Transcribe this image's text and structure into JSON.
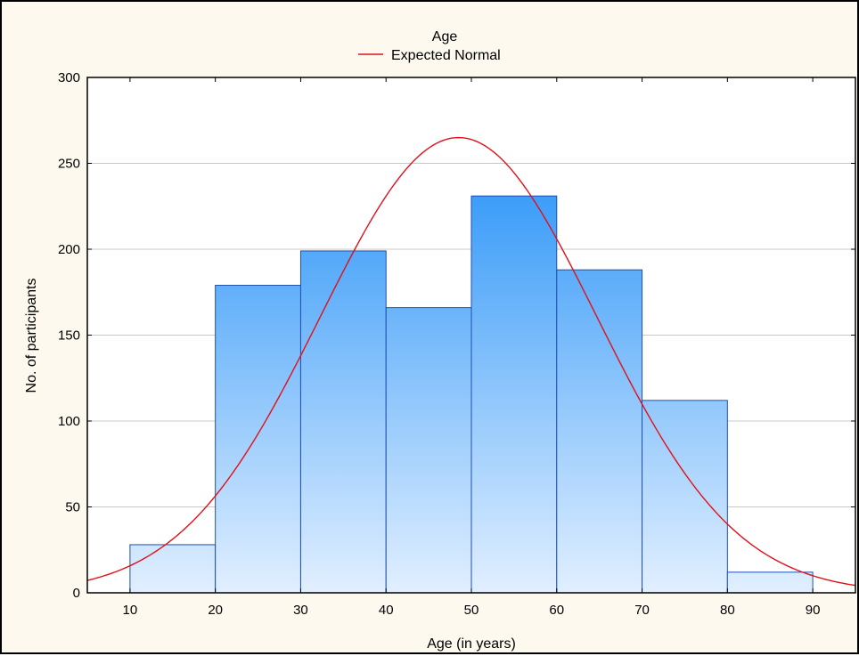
{
  "chart_data": {
    "type": "bar",
    "title": "Age",
    "xlabel": "Age (in years)",
    "ylabel": "No. of  participants",
    "xlim": [
      5,
      95
    ],
    "ylim": [
      0,
      300
    ],
    "x_ticks": [
      10,
      20,
      30,
      40,
      50,
      60,
      70,
      80,
      90
    ],
    "y_ticks": [
      0,
      50,
      100,
      150,
      200,
      250,
      300
    ],
    "grid": "horizontal",
    "legend_position": "top-center",
    "bins": [
      {
        "from": 10,
        "to": 20,
        "count": 28
      },
      {
        "from": 20,
        "to": 30,
        "count": 179
      },
      {
        "from": 30,
        "to": 40,
        "count": 199
      },
      {
        "from": 40,
        "to": 50,
        "count": 166
      },
      {
        "from": 50,
        "to": 60,
        "count": 231
      },
      {
        "from": 60,
        "to": 70,
        "count": 188
      },
      {
        "from": 70,
        "to": 80,
        "count": 112
      },
      {
        "from": 80,
        "to": 90,
        "count": 12
      }
    ],
    "series": [
      {
        "name": "Expected Normal",
        "type": "line",
        "peak_x": 48.5,
        "peak_y": 265,
        "sd": 16.2,
        "color": "#e0101a"
      }
    ],
    "colors": {
      "bar_top": "#3a9cf8",
      "bar_bottom": "#e1efff",
      "bar_border": "#1f4fb0",
      "curve": "#e0101a",
      "background": "#fdf9ee",
      "plot_background": "#ffffff",
      "grid": "#c8c8c8"
    }
  }
}
